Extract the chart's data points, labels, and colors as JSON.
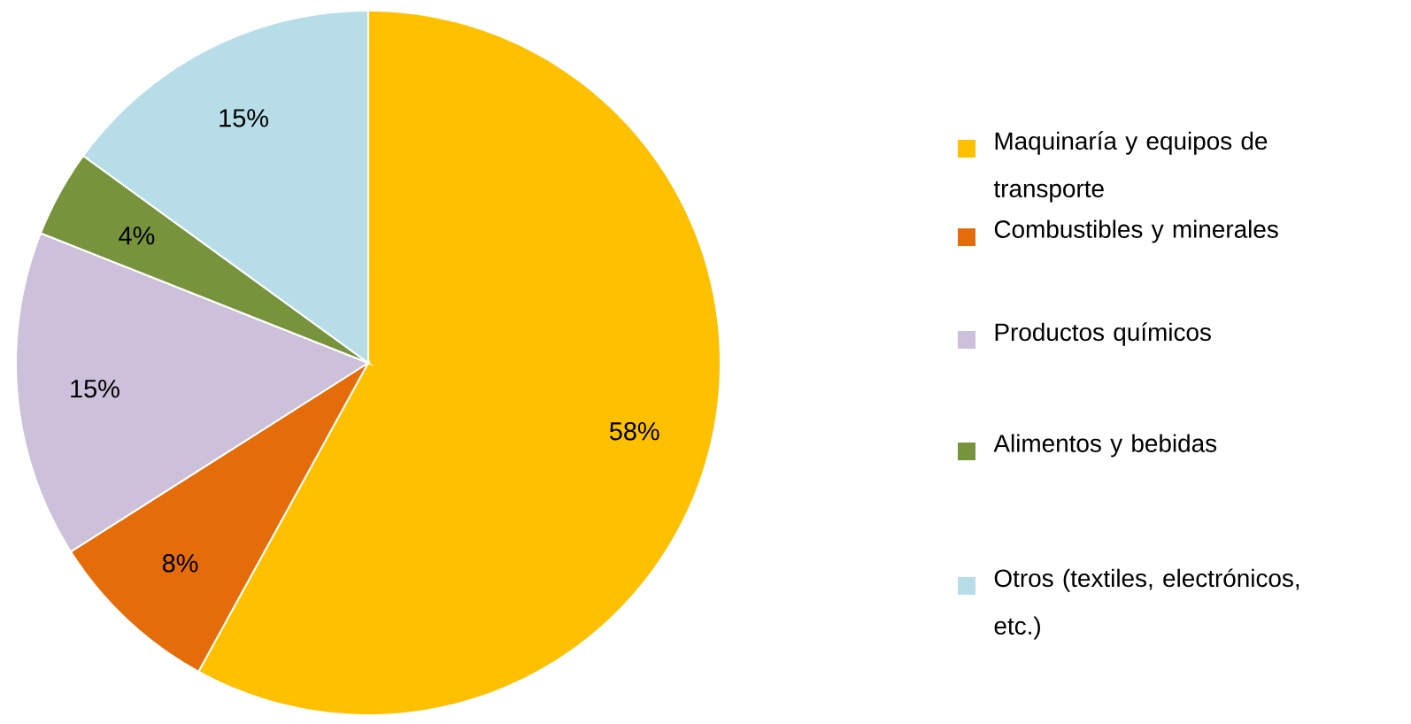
{
  "chart_data": {
    "type": "pie",
    "categories": [
      "Maquinaría y equipos de transporte",
      "Combustibles y minerales",
      "Productos químicos",
      "Alimentos y bebidas",
      "Otros (textiles, electrónicos, etc.)"
    ],
    "values": [
      58,
      8,
      15,
      4,
      15
    ],
    "colors": [
      "#ffc000",
      "#e46c0a",
      "#ccc0da",
      "#77933c",
      "#b7dee8"
    ],
    "value_labels": [
      "58%",
      "8%",
      "15%",
      "4%",
      "15%"
    ],
    "legend": "right"
  }
}
